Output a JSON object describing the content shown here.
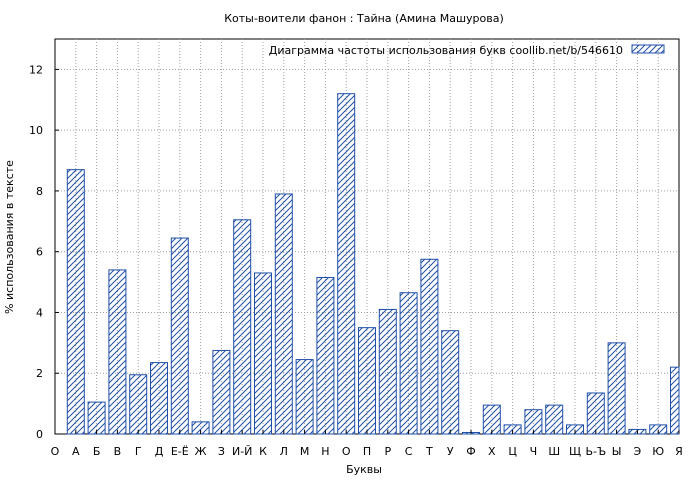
{
  "chart_data": {
    "type": "bar",
    "title": "Коты-воители фанон : Тайна (Амина Машурова)",
    "xlabel": "Буквы",
    "ylabel": "% использования в тексте",
    "legend": {
      "label": "Диаграмма частоты использования букв  coollib.net/b/546610",
      "position": "top-right"
    },
    "ylim": [
      0,
      13
    ],
    "yticks": [
      0,
      2,
      4,
      6,
      8,
      10,
      12
    ],
    "grid": true,
    "bar_color": "#1f4fa8",
    "categories": [
      "О",
      "А",
      "Б",
      "В",
      "Г",
      "Д",
      "Е-Ё",
      "Ж",
      "З",
      "И-Й",
      "К",
      "Л",
      "М",
      "Н",
      "О",
      "П",
      "Р",
      "С",
      "Т",
      "У",
      "Ф",
      "Х",
      "Ц",
      "Ч",
      "Ш",
      "Щ",
      "Ь-Ъ",
      "Ы",
      "Э",
      "Ю",
      "Я"
    ],
    "values": [
      0,
      8.7,
      1.05,
      5.4,
      1.95,
      2.35,
      6.45,
      0.4,
      2.75,
      7.05,
      5.3,
      7.9,
      2.45,
      5.15,
      11.2,
      3.5,
      4.1,
      4.65,
      5.75,
      3.4,
      0.05,
      0.95,
      0.3,
      0.8,
      0.95,
      0.3,
      1.35,
      3.0,
      0.15,
      0.3,
      2.2
    ]
  }
}
